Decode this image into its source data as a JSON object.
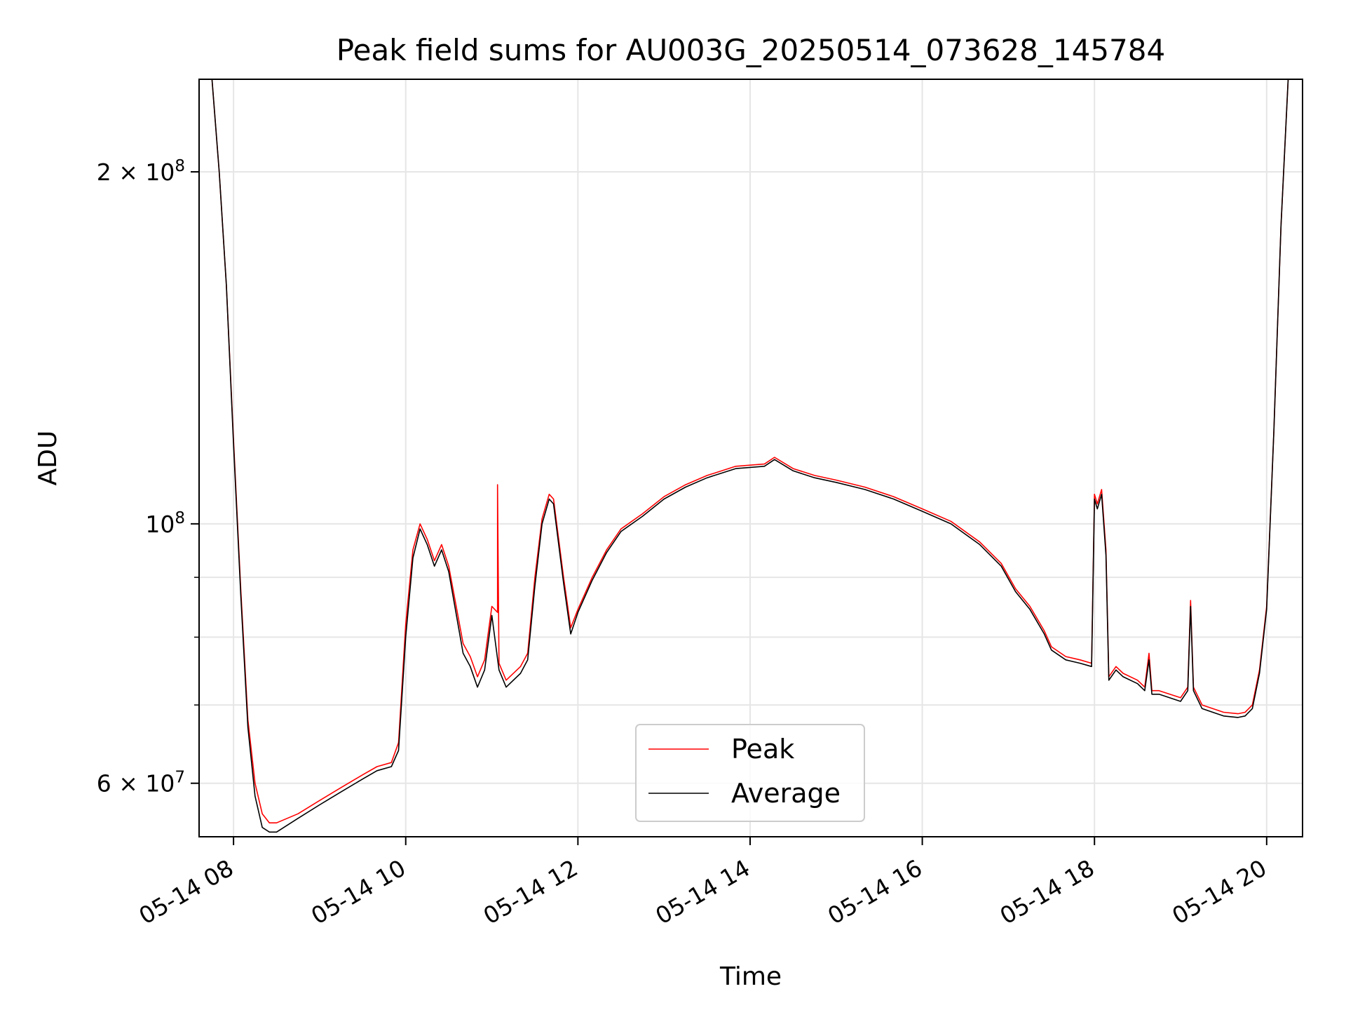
{
  "chart_data": {
    "type": "line",
    "title": "Peak field sums for AU003G_20250514_073628_145784",
    "xlabel": "Time",
    "ylabel": "ADU",
    "x_tick_labels": [
      "05-14 08",
      "05-14 10",
      "05-14 12",
      "05-14 14",
      "05-14 16",
      "05-14 18",
      "05-14 20"
    ],
    "x_tick_values": [
      "2025-05-14 08:00",
      "2025-05-14 10:00",
      "2025-05-14 12:00",
      "2025-05-14 14:00",
      "2025-05-14 16:00",
      "2025-05-14 18:00",
      "2025-05-14 20:00"
    ],
    "y_scale": "log",
    "y_major_ticks": [
      {
        "value": 60000000,
        "mantissa": "6",
        "exponent": "7",
        "has_mantissa": true
      },
      {
        "value": 100000000,
        "mantissa": "",
        "exponent": "8",
        "has_mantissa": false
      },
      {
        "value": 200000000,
        "mantissa": "2",
        "exponent": "8",
        "has_mantissa": true
      }
    ],
    "y_minor_ticks": [
      70000000,
      80000000,
      90000000
    ],
    "xlim": [
      "2025-05-14 07:36",
      "2025-05-14 20:25"
    ],
    "ylim": [
      54000000,
      240000000
    ],
    "grid": true,
    "legend_position": "lower center",
    "series": [
      {
        "name": "Peak",
        "color": "#ff0000",
        "x": [
          "2025-05-14 07:37",
          "2025-05-14 07:45",
          "2025-05-14 07:50",
          "2025-05-14 07:55",
          "2025-05-14 08:00",
          "2025-05-14 08:05",
          "2025-05-14 08:10",
          "2025-05-14 08:15",
          "2025-05-14 08:20",
          "2025-05-14 08:25",
          "2025-05-14 08:30",
          "2025-05-14 08:45",
          "2025-05-14 09:00",
          "2025-05-14 09:15",
          "2025-05-14 09:30",
          "2025-05-14 09:40",
          "2025-05-14 09:50",
          "2025-05-14 09:55",
          "2025-05-14 10:00",
          "2025-05-14 10:05",
          "2025-05-14 10:10",
          "2025-05-14 10:15",
          "2025-05-14 10:20",
          "2025-05-14 10:25",
          "2025-05-14 10:30",
          "2025-05-14 10:40",
          "2025-05-14 10:45",
          "2025-05-14 10:50",
          "2025-05-14 10:55",
          "2025-05-14 11:00",
          "2025-05-14 11:04",
          "2025-05-14 11:04",
          "2025-05-14 11:05",
          "2025-05-14 11:10",
          "2025-05-14 11:20",
          "2025-05-14 11:25",
          "2025-05-14 11:30",
          "2025-05-14 11:35",
          "2025-05-14 11:40",
          "2025-05-14 11:43",
          "2025-05-14 11:50",
          "2025-05-14 11:55",
          "2025-05-14 12:00",
          "2025-05-14 12:10",
          "2025-05-14 12:20",
          "2025-05-14 12:30",
          "2025-05-14 12:45",
          "2025-05-14 13:00",
          "2025-05-14 13:15",
          "2025-05-14 13:30",
          "2025-05-14 13:50",
          "2025-05-14 14:10",
          "2025-05-14 14:17",
          "2025-05-14 14:30",
          "2025-05-14 14:45",
          "2025-05-14 15:00",
          "2025-05-14 15:20",
          "2025-05-14 15:40",
          "2025-05-14 16:00",
          "2025-05-14 16:20",
          "2025-05-14 16:40",
          "2025-05-14 16:55",
          "2025-05-14 17:05",
          "2025-05-14 17:15",
          "2025-05-14 17:25",
          "2025-05-14 17:30",
          "2025-05-14 17:40",
          "2025-05-14 17:50",
          "2025-05-14 17:58",
          "2025-05-14 18:00",
          "2025-05-14 18:02",
          "2025-05-14 18:05",
          "2025-05-14 18:08",
          "2025-05-14 18:10",
          "2025-05-14 18:15",
          "2025-05-14 18:20",
          "2025-05-14 18:30",
          "2025-05-14 18:35",
          "2025-05-14 18:38",
          "2025-05-14 18:40",
          "2025-05-14 18:45",
          "2025-05-14 19:00",
          "2025-05-14 19:05",
          "2025-05-14 19:07",
          "2025-05-14 19:09",
          "2025-05-14 19:15",
          "2025-05-14 19:30",
          "2025-05-14 19:40",
          "2025-05-14 19:45",
          "2025-05-14 19:50",
          "2025-05-14 19:55",
          "2025-05-14 20:00",
          "2025-05-14 20:05",
          "2025-05-14 20:10",
          "2025-05-14 20:15",
          "2025-05-14 20:25"
        ],
        "values": [
          240000000,
          240000000,
          200000000,
          160000000,
          118000000,
          88000000,
          68000000,
          60000000,
          56500000,
          55500000,
          55500000,
          56500000,
          58000000,
          59500000,
          61000000,
          62000000,
          62500000,
          65000000,
          82000000,
          95000000,
          100000000,
          97000000,
          93000000,
          96000000,
          92000000,
          79000000,
          77000000,
          74000000,
          76500000,
          85000000,
          84000000,
          108000000,
          76000000,
          73500000,
          75500000,
          77500000,
          90000000,
          101000000,
          106000000,
          105000000,
          90000000,
          81500000,
          84500000,
          90000000,
          95000000,
          99000000,
          102000000,
          105500000,
          108000000,
          110000000,
          112000000,
          112500000,
          114000000,
          111500000,
          110000000,
          109000000,
          107500000,
          105500000,
          103000000,
          100500000,
          96500000,
          92500000,
          88000000,
          85000000,
          81000000,
          78500000,
          77000000,
          76500000,
          76000000,
          106000000,
          104000000,
          107000000,
          95000000,
          74000000,
          75500000,
          74500000,
          73500000,
          72500000,
          77500000,
          72000000,
          72000000,
          71000000,
          72500000,
          86000000,
          72500000,
          70000000,
          69000000,
          68800000,
          69000000,
          70000000,
          75000000,
          85000000,
          120000000,
          180000000,
          240000000,
          240000000
        ]
      },
      {
        "name": "Average",
        "color": "#000000",
        "x": [
          "2025-05-14 07:37",
          "2025-05-14 07:45",
          "2025-05-14 07:50",
          "2025-05-14 07:55",
          "2025-05-14 08:00",
          "2025-05-14 08:05",
          "2025-05-14 08:10",
          "2025-05-14 08:15",
          "2025-05-14 08:20",
          "2025-05-14 08:25",
          "2025-05-14 08:30",
          "2025-05-14 08:45",
          "2025-05-14 09:00",
          "2025-05-14 09:15",
          "2025-05-14 09:30",
          "2025-05-14 09:40",
          "2025-05-14 09:50",
          "2025-05-14 09:55",
          "2025-05-14 10:00",
          "2025-05-14 10:05",
          "2025-05-14 10:10",
          "2025-05-14 10:15",
          "2025-05-14 10:20",
          "2025-05-14 10:25",
          "2025-05-14 10:30",
          "2025-05-14 10:40",
          "2025-05-14 10:45",
          "2025-05-14 10:50",
          "2025-05-14 10:55",
          "2025-05-14 11:00",
          "2025-05-14 11:05",
          "2025-05-14 11:10",
          "2025-05-14 11:20",
          "2025-05-14 11:25",
          "2025-05-14 11:30",
          "2025-05-14 11:35",
          "2025-05-14 11:40",
          "2025-05-14 11:43",
          "2025-05-14 11:50",
          "2025-05-14 11:55",
          "2025-05-14 12:00",
          "2025-05-14 12:10",
          "2025-05-14 12:20",
          "2025-05-14 12:30",
          "2025-05-14 12:45",
          "2025-05-14 13:00",
          "2025-05-14 13:15",
          "2025-05-14 13:30",
          "2025-05-14 13:50",
          "2025-05-14 14:10",
          "2025-05-14 14:17",
          "2025-05-14 14:30",
          "2025-05-14 14:45",
          "2025-05-14 15:00",
          "2025-05-14 15:20",
          "2025-05-14 15:40",
          "2025-05-14 16:00",
          "2025-05-14 16:20",
          "2025-05-14 16:40",
          "2025-05-14 16:55",
          "2025-05-14 17:05",
          "2025-05-14 17:15",
          "2025-05-14 17:25",
          "2025-05-14 17:30",
          "2025-05-14 17:40",
          "2025-05-14 17:50",
          "2025-05-14 17:58",
          "2025-05-14 18:00",
          "2025-05-14 18:02",
          "2025-05-14 18:05",
          "2025-05-14 18:08",
          "2025-05-14 18:10",
          "2025-05-14 18:15",
          "2025-05-14 18:20",
          "2025-05-14 18:30",
          "2025-05-14 18:35",
          "2025-05-14 18:38",
          "2025-05-14 18:40",
          "2025-05-14 18:45",
          "2025-05-14 19:00",
          "2025-05-14 19:05",
          "2025-05-14 19:07",
          "2025-05-14 19:09",
          "2025-05-14 19:15",
          "2025-05-14 19:30",
          "2025-05-14 19:40",
          "2025-05-14 19:45",
          "2025-05-14 19:50",
          "2025-05-14 19:55",
          "2025-05-14 20:00",
          "2025-05-14 20:05",
          "2025-05-14 20:10",
          "2025-05-14 20:15",
          "2025-05-14 20:25"
        ],
        "values": [
          240000000,
          240000000,
          200000000,
          160000000,
          117000000,
          87000000,
          67000000,
          58500000,
          55000000,
          54500000,
          54500000,
          56000000,
          57500000,
          59000000,
          60500000,
          61500000,
          62000000,
          64000000,
          80000000,
          93500000,
          99000000,
          96000000,
          92000000,
          95000000,
          91000000,
          77500000,
          75500000,
          72500000,
          75000000,
          83500000,
          75000000,
          72500000,
          74500000,
          76500000,
          88500000,
          100000000,
          105000000,
          104000000,
          89000000,
          80500000,
          84000000,
          89500000,
          94500000,
          98500000,
          101500000,
          105000000,
          107500000,
          109500000,
          111500000,
          112000000,
          113500000,
          111000000,
          109500000,
          108500000,
          107000000,
          105000000,
          102500000,
          100000000,
          96000000,
          92000000,
          87500000,
          84500000,
          80500000,
          78000000,
          76500000,
          76000000,
          75500000,
          105000000,
          103000000,
          106000000,
          94000000,
          73500000,
          75000000,
          74000000,
          73000000,
          72000000,
          76500000,
          71500000,
          71500000,
          70500000,
          72000000,
          85000000,
          72000000,
          69500000,
          68500000,
          68300000,
          68500000,
          69500000,
          74500000,
          84500000,
          120000000,
          180000000,
          240000000,
          240000000
        ]
      }
    ]
  }
}
